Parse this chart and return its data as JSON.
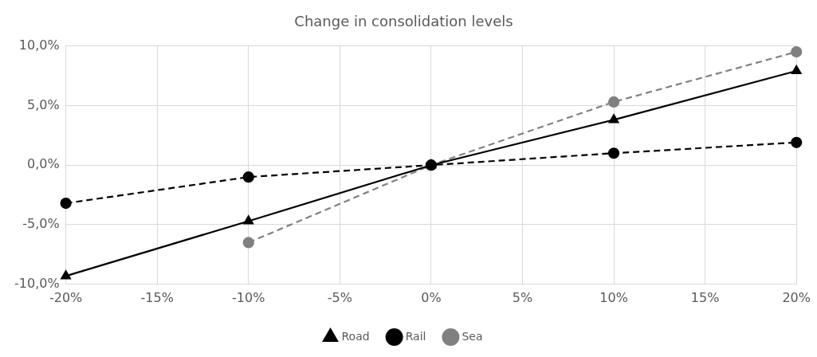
{
  "chart_data": {
    "type": "line",
    "title": "Change in consolidation levels",
    "x": [
      -20,
      -10,
      0,
      10,
      20
    ],
    "xlim": [
      -20,
      20
    ],
    "xticks": [
      {
        "value": -20,
        "label": "-20%"
      },
      {
        "value": -15,
        "label": "-15%"
      },
      {
        "value": -10,
        "label": "-10%"
      },
      {
        "value": -5,
        "label": "-5%"
      },
      {
        "value": 0,
        "label": "0%"
      },
      {
        "value": 5,
        "label": "5%"
      },
      {
        "value": 10,
        "label": "10%"
      },
      {
        "value": 15,
        "label": "15%"
      },
      {
        "value": 20,
        "label": "20%"
      }
    ],
    "ylim": [
      -10,
      10
    ],
    "yticks": [
      {
        "value": -10,
        "label": "-10,0%"
      },
      {
        "value": -5,
        "label": "-5,0%"
      },
      {
        "value": 0,
        "label": "0,0%"
      },
      {
        "value": 5,
        "label": "5,0%"
      },
      {
        "value": 10,
        "label": "10,0%"
      }
    ],
    "grid": true,
    "legend": "bottom",
    "series": [
      {
        "name": "Road",
        "color": "#000000",
        "marker": "triangle",
        "line_style": "solid",
        "values": [
          -9.3,
          -4.7,
          0,
          3.8,
          7.9
        ]
      },
      {
        "name": "Rail",
        "color": "#000000",
        "marker": "circle",
        "line_style": "dashed",
        "values": [
          -3.2,
          -1.0,
          0,
          1.0,
          1.9
        ]
      },
      {
        "name": "Sea",
        "color": "#808080",
        "marker": "circle",
        "line_style": "dashed",
        "values": [
          null,
          -6.5,
          0,
          5.3,
          9.5
        ]
      }
    ]
  }
}
